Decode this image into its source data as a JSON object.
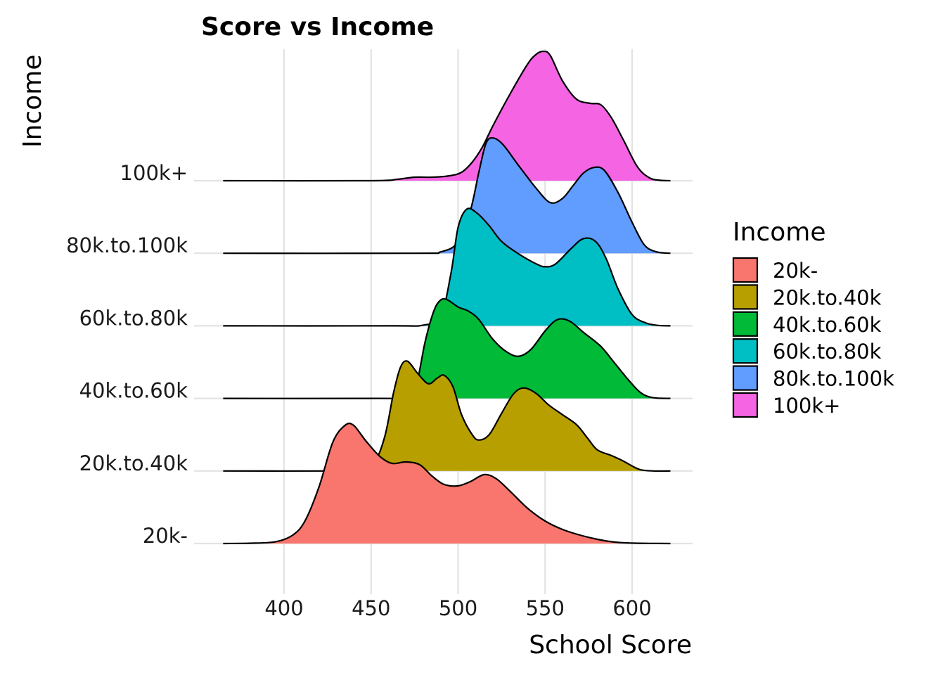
{
  "chart_data": {
    "type": "ridgeline",
    "title": "Score vs Income",
    "xlabel": "School Score",
    "ylabel": "Income",
    "xlim": [
      365,
      622
    ],
    "x_ticks": [
      400,
      450,
      500,
      550,
      600
    ],
    "legend": {
      "title": "Income",
      "placement": "right"
    },
    "grid": true,
    "series": [
      {
        "name": "20k-",
        "color": "#F8766D",
        "points": [
          [
            365,
            0.0
          ],
          [
            380,
            0.002
          ],
          [
            395,
            0.012
          ],
          [
            405,
            0.06
          ],
          [
            412,
            0.16
          ],
          [
            420,
            0.4
          ],
          [
            428,
            0.72
          ],
          [
            435,
            0.84
          ],
          [
            440,
            0.84
          ],
          [
            447,
            0.73
          ],
          [
            455,
            0.62
          ],
          [
            462,
            0.57
          ],
          [
            470,
            0.58
          ],
          [
            478,
            0.56
          ],
          [
            485,
            0.48
          ],
          [
            492,
            0.42
          ],
          [
            500,
            0.41
          ],
          [
            507,
            0.44
          ],
          [
            515,
            0.49
          ],
          [
            522,
            0.46
          ],
          [
            530,
            0.37
          ],
          [
            540,
            0.25
          ],
          [
            550,
            0.16
          ],
          [
            560,
            0.1
          ],
          [
            570,
            0.06
          ],
          [
            580,
            0.03
          ],
          [
            590,
            0.01
          ],
          [
            600,
            0.003
          ],
          [
            610,
            0.001
          ],
          [
            622,
            0.0
          ]
        ]
      },
      {
        "name": "20k.to.40k",
        "color": "#B79F00",
        "points": [
          [
            365,
            0.0
          ],
          [
            430,
            0.0
          ],
          [
            445,
            0.01
          ],
          [
            452,
            0.06
          ],
          [
            458,
            0.25
          ],
          [
            463,
            0.56
          ],
          [
            467,
            0.74
          ],
          [
            471,
            0.78
          ],
          [
            477,
            0.69
          ],
          [
            483,
            0.62
          ],
          [
            488,
            0.66
          ],
          [
            492,
            0.68
          ],
          [
            497,
            0.6
          ],
          [
            502,
            0.4
          ],
          [
            508,
            0.26
          ],
          [
            512,
            0.22
          ],
          [
            518,
            0.26
          ],
          [
            525,
            0.41
          ],
          [
            532,
            0.55
          ],
          [
            538,
            0.59
          ],
          [
            545,
            0.55
          ],
          [
            552,
            0.47
          ],
          [
            560,
            0.4
          ],
          [
            568,
            0.33
          ],
          [
            574,
            0.24
          ],
          [
            580,
            0.15
          ],
          [
            588,
            0.11
          ],
          [
            595,
            0.07
          ],
          [
            600,
            0.035
          ],
          [
            605,
            0.008
          ],
          [
            612,
            0.0
          ],
          [
            622,
            0.0
          ]
        ]
      },
      {
        "name": "40k.to.60k",
        "color": "#00BA38",
        "points": [
          [
            365,
            0.0
          ],
          [
            450,
            0.0
          ],
          [
            470,
            0.01
          ],
          [
            476,
            0.1
          ],
          [
            481,
            0.4
          ],
          [
            486,
            0.62
          ],
          [
            490,
            0.7
          ],
          [
            494,
            0.7
          ],
          [
            500,
            0.65
          ],
          [
            506,
            0.62
          ],
          [
            512,
            0.56
          ],
          [
            520,
            0.42
          ],
          [
            528,
            0.33
          ],
          [
            535,
            0.3
          ],
          [
            542,
            0.35
          ],
          [
            550,
            0.48
          ],
          [
            557,
            0.56
          ],
          [
            564,
            0.55
          ],
          [
            572,
            0.47
          ],
          [
            582,
            0.37
          ],
          [
            590,
            0.25
          ],
          [
            598,
            0.13
          ],
          [
            605,
            0.04
          ],
          [
            612,
            0.005
          ],
          [
            622,
            0.0
          ]
        ]
      },
      {
        "name": "60k.to.80k",
        "color": "#00BFC4",
        "points": [
          [
            365,
            0.0
          ],
          [
            460,
            0.0
          ],
          [
            480,
            0.005
          ],
          [
            490,
            0.07
          ],
          [
            496,
            0.38
          ],
          [
            500,
            0.7
          ],
          [
            505,
            0.83
          ],
          [
            511,
            0.8
          ],
          [
            518,
            0.71
          ],
          [
            525,
            0.6
          ],
          [
            535,
            0.51
          ],
          [
            545,
            0.44
          ],
          [
            550,
            0.42
          ],
          [
            556,
            0.44
          ],
          [
            565,
            0.55
          ],
          [
            572,
            0.62
          ],
          [
            579,
            0.6
          ],
          [
            585,
            0.48
          ],
          [
            592,
            0.26
          ],
          [
            600,
            0.08
          ],
          [
            608,
            0.02
          ],
          [
            615,
            0.003
          ],
          [
            622,
            0.0
          ]
        ]
      },
      {
        "name": "80k.to.100k",
        "color": "#619CFF",
        "points": [
          [
            365,
            0.0
          ],
          [
            475,
            0.0
          ],
          [
            490,
            0.01
          ],
          [
            500,
            0.08
          ],
          [
            507,
            0.3
          ],
          [
            512,
            0.58
          ],
          [
            516,
            0.78
          ],
          [
            520,
            0.82
          ],
          [
            526,
            0.77
          ],
          [
            535,
            0.62
          ],
          [
            545,
            0.46
          ],
          [
            553,
            0.36
          ],
          [
            560,
            0.39
          ],
          [
            566,
            0.48
          ],
          [
            572,
            0.57
          ],
          [
            578,
            0.61
          ],
          [
            584,
            0.59
          ],
          [
            592,
            0.43
          ],
          [
            600,
            0.22
          ],
          [
            607,
            0.06
          ],
          [
            614,
            0.01
          ],
          [
            622,
            0.0
          ]
        ]
      },
      {
        "name": "100k+",
        "color": "#F564E3",
        "points": [
          [
            365,
            0.0
          ],
          [
            450,
            0.0
          ],
          [
            465,
            0.01
          ],
          [
            475,
            0.025
          ],
          [
            485,
            0.025
          ],
          [
            495,
            0.035
          ],
          [
            502,
            0.06
          ],
          [
            508,
            0.13
          ],
          [
            514,
            0.24
          ],
          [
            520,
            0.39
          ],
          [
            530,
            0.62
          ],
          [
            540,
            0.83
          ],
          [
            545,
            0.9
          ],
          [
            549,
            0.92
          ],
          [
            553,
            0.89
          ],
          [
            560,
            0.71
          ],
          [
            568,
            0.58
          ],
          [
            576,
            0.55
          ],
          [
            582,
            0.54
          ],
          [
            588,
            0.45
          ],
          [
            595,
            0.29
          ],
          [
            603,
            0.1
          ],
          [
            610,
            0.02
          ],
          [
            616,
            0.003
          ],
          [
            622,
            0.0
          ]
        ]
      }
    ]
  }
}
